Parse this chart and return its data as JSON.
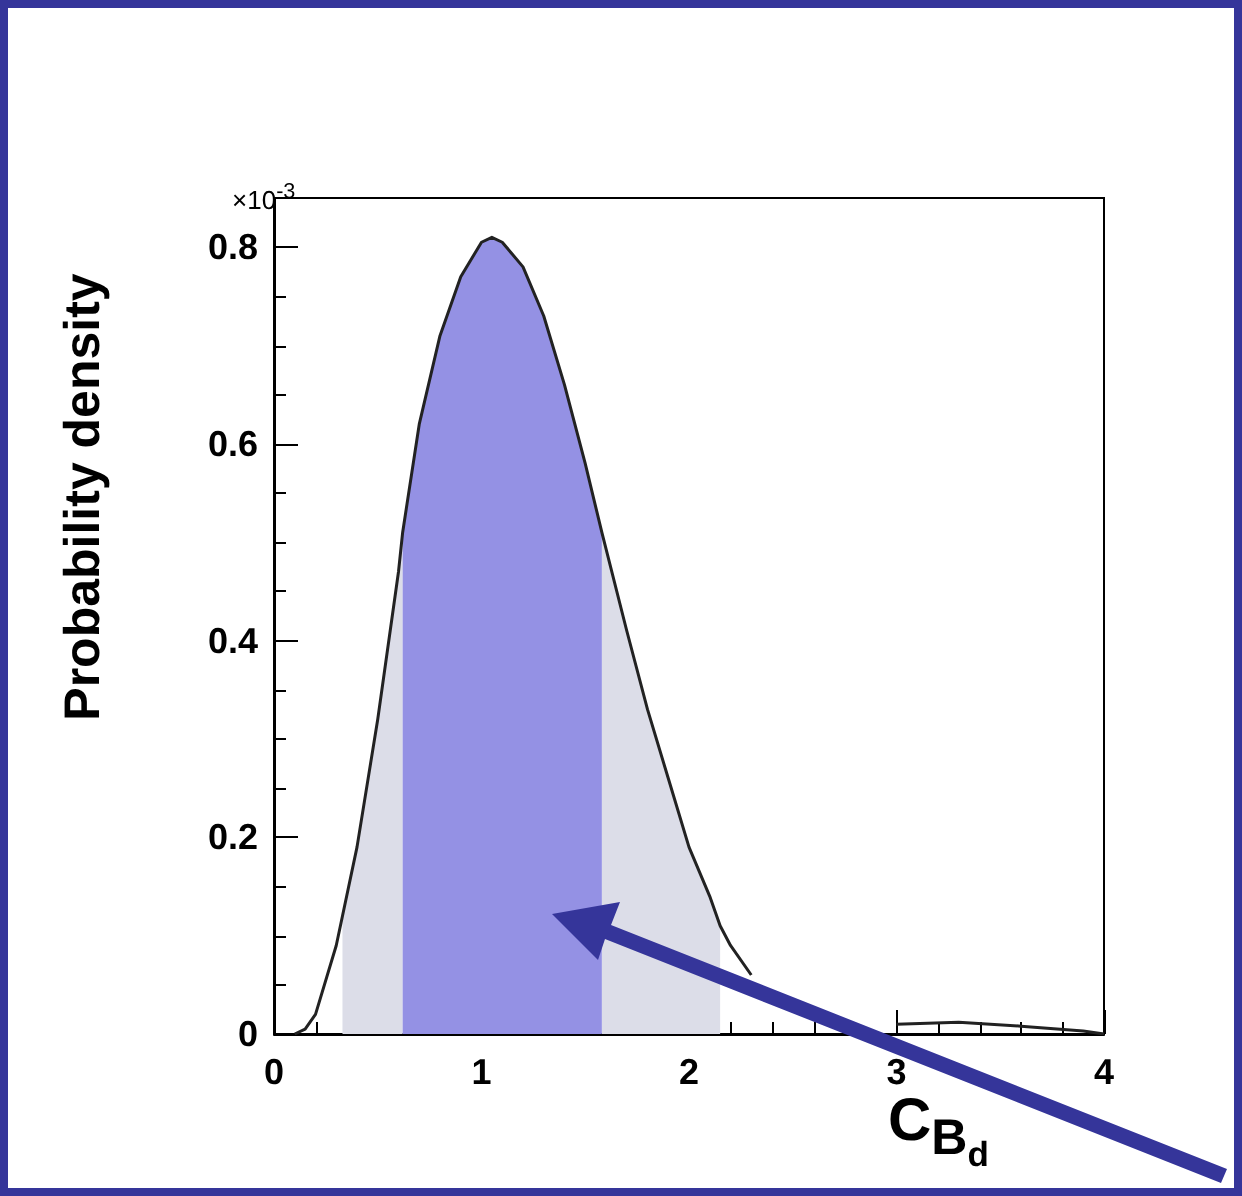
{
  "chart_data": {
    "type": "line",
    "xlabel": "C$_{B}$$_{d}$",
    "ylabel": "Probability density",
    "annotations": [
      "×10$^{-3}$"
    ],
    "xlim": [
      0,
      4
    ],
    "xticks": [
      0,
      1,
      2,
      3,
      4
    ],
    "ylim": [
      0,
      0.85
    ],
    "yticks": [
      0,
      0.2,
      0.4,
      0.6,
      0.8
    ],
    "grid": false,
    "marker": "none",
    "series": [
      {
        "type": "area",
        "color": "#dcdde8",
        "x": [
          0.33,
          0.4,
          0.5,
          0.6,
          0.62
        ],
        "values": [
          0.12,
          0.19,
          0.32,
          0.47,
          0.51
        ]
      },
      {
        "type": "area",
        "color": "#dcdde8",
        "x": [
          1.58,
          1.7,
          1.8,
          1.9,
          2.0,
          2.1,
          2.15
        ],
        "values": [
          0.51,
          0.41,
          0.33,
          0.26,
          0.19,
          0.14,
          0.11
        ]
      },
      {
        "type": "area",
        "color": "#9491e4",
        "x": [
          0.62,
          0.7,
          0.8,
          0.9,
          1.0,
          1.05,
          1.1,
          1.2,
          1.3,
          1.4,
          1.5,
          1.58
        ],
        "values": [
          0.51,
          0.62,
          0.71,
          0.77,
          0.805,
          0.81,
          0.805,
          0.78,
          0.73,
          0.66,
          0.58,
          0.51
        ]
      },
      {
        "type": "line",
        "color": "#222222",
        "x": [
          0.1,
          0.15,
          0.2,
          0.3,
          0.33,
          0.4,
          0.5,
          0.6,
          0.62,
          0.7,
          0.8,
          0.9,
          1.0,
          1.05,
          1.1,
          1.2,
          1.3,
          1.4,
          1.5,
          1.58,
          1.7,
          1.8,
          1.9,
          2.0,
          2.1,
          2.15,
          2.2,
          2.3,
          2.4,
          2.5,
          2.6,
          2.7,
          2.8,
          3.0,
          3.3,
          3.6,
          3.9,
          4.0
        ],
        "values": [
          0,
          0.005,
          0.02,
          0.09,
          0.12,
          0.19,
          0.32,
          0.47,
          0.51,
          0.62,
          0.71,
          0.77,
          0.805,
          0.81,
          0.805,
          0.78,
          0.73,
          0.66,
          0.58,
          0.51,
          0.41,
          0.33,
          0.26,
          0.19,
          0.14,
          0.11,
          0.09,
          0.06,
          null,
          null,
          null,
          null,
          null,
          0.01,
          0.012,
          0.008,
          0.003,
          0
        ]
      }
    ]
  }
}
